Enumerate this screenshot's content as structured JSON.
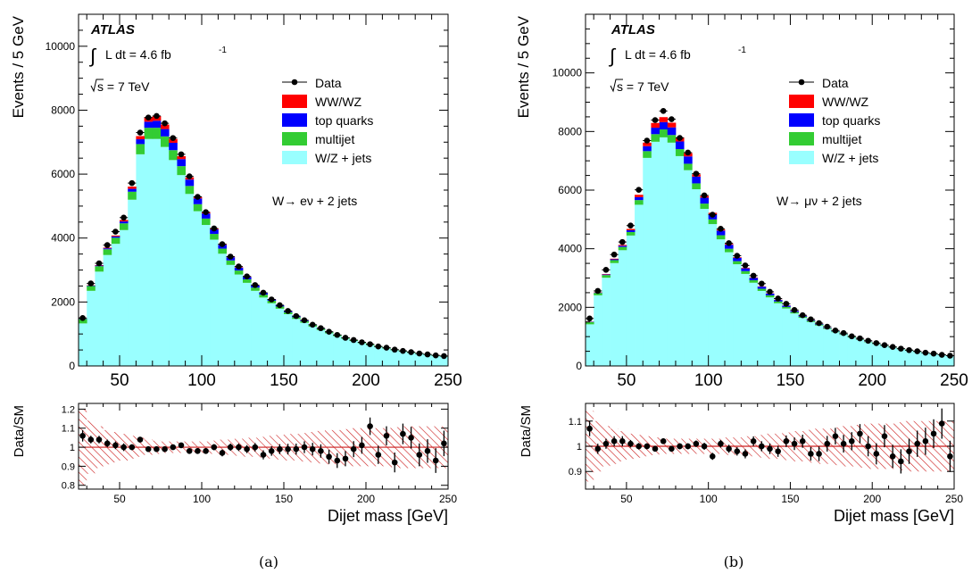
{
  "colors": {
    "wz_jets": "#99ffff",
    "multijet": "#33cc33",
    "top_quarks": "#0000ff",
    "ww_wz": "#ff0000",
    "data": "#000000",
    "band": "#cc1f1f"
  },
  "chart_data": [
    {
      "panel_caption": "(a)",
      "type": "bar",
      "subtype": "stacked-histogram-with-ratio",
      "title": "ATLAS",
      "annotations": [
        "L dt = 4.6 fb",
        "-1",
        "s = 7 TeV",
        "W→ eν + 2 jets"
      ],
      "ylabel": "Events / 5 GeV",
      "xlim": [
        25,
        250
      ],
      "ylim": [
        0,
        11000
      ],
      "yticks": [
        0,
        2000,
        4000,
        6000,
        8000,
        10000
      ],
      "xticks": [
        50,
        100,
        150,
        200,
        250
      ],
      "bin_width": 5,
      "x": [
        27.5,
        32.5,
        37.5,
        42.5,
        47.5,
        52.5,
        57.5,
        62.5,
        67.5,
        72.5,
        77.5,
        82.5,
        87.5,
        92.5,
        97.5,
        102.5,
        107.5,
        112.5,
        117.5,
        122.5,
        127.5,
        132.5,
        137.5,
        142.5,
        147.5,
        152.5,
        157.5,
        162.5,
        167.5,
        172.5,
        177.5,
        182.5,
        187.5,
        192.5,
        197.5,
        202.5,
        207.5,
        212.5,
        217.5,
        222.5,
        227.5,
        232.5,
        237.5,
        242.5,
        247.5
      ],
      "legend": [
        "Data",
        "WW/WZ",
        "top quarks",
        "multijet",
        "W/Z + jets"
      ],
      "legend_position": "top-right",
      "series": [
        {
          "name": "W/Z + jets",
          "values": [
            1330,
            2350,
            2950,
            3470,
            3820,
            4250,
            5200,
            6620,
            7100,
            7100,
            6850,
            6440,
            5970,
            5380,
            4840,
            4410,
            3950,
            3510,
            3160,
            2860,
            2600,
            2350,
            2140,
            1960,
            1790,
            1620,
            1470,
            1350,
            1230,
            1120,
            1020,
            930,
            850,
            780,
            710,
            650,
            590,
            540,
            490,
            450,
            410,
            375,
            345,
            315,
            290
          ]
        },
        {
          "name": "multijet",
          "values": [
            140,
            150,
            170,
            180,
            190,
            210,
            250,
            320,
            350,
            350,
            330,
            310,
            280,
            250,
            220,
            200,
            180,
            160,
            140,
            125,
            110,
            100,
            90,
            80,
            70,
            62,
            55,
            50,
            45,
            40,
            36,
            32,
            29,
            26,
            23,
            21,
            19,
            17,
            15,
            14,
            13,
            12,
            11,
            10,
            9
          ]
        },
        {
          "name": "top quarks",
          "values": [
            10,
            15,
            20,
            30,
            40,
            60,
            90,
            150,
            190,
            220,
            230,
            230,
            220,
            200,
            180,
            160,
            140,
            120,
            100,
            85,
            75,
            65,
            55,
            45,
            38,
            32,
            26,
            22,
            18,
            15,
            12,
            10,
            8,
            6,
            5,
            4,
            3,
            3,
            2,
            2,
            2,
            2,
            1,
            1,
            1
          ]
        },
        {
          "name": "WW/WZ",
          "values": [
            5,
            10,
            15,
            20,
            30,
            45,
            70,
            100,
            140,
            150,
            140,
            120,
            90,
            70,
            50,
            40,
            30,
            25,
            20,
            16,
            13,
            10,
            8,
            7,
            6,
            5,
            4,
            4,
            3,
            3,
            3,
            2,
            2,
            2,
            2,
            2,
            1,
            1,
            1,
            1,
            1,
            1,
            1,
            1,
            1
          ]
        },
        {
          "name": "Data",
          "values": [
            1500,
            2580,
            3210,
            3780,
            4200,
            4640,
            5720,
            7300,
            7770,
            7820,
            7590,
            7130,
            6620,
            5930,
            5290,
            4810,
            4300,
            3810,
            3420,
            3110,
            2800,
            2530,
            2290,
            2080,
            1900,
            1720,
            1560,
            1430,
            1290,
            1180,
            1070,
            970,
            880,
            810,
            740,
            680,
            610,
            570,
            510,
            470,
            430,
            390,
            360,
            330,
            310
          ]
        }
      ],
      "ratio": {
        "ylabel": "Data/SM",
        "xlabel": "Dijet mass [GeV]",
        "ylim": [
          0.78,
          1.23
        ],
        "yticks": [
          0.8,
          0.9,
          1.0,
          1.1,
          1.2
        ],
        "xticks": [
          50,
          100,
          150,
          200,
          250
        ],
        "values": [
          1.06,
          1.04,
          1.04,
          1.02,
          1.01,
          1.0,
          1.0,
          1.04,
          0.99,
          0.99,
          0.99,
          1.0,
          1.01,
          0.98,
          0.98,
          0.98,
          1.0,
          0.97,
          1.0,
          1.0,
          0.99,
          1.0,
          0.96,
          0.98,
          0.99,
          0.99,
          0.99,
          1.0,
          0.99,
          0.98,
          0.95,
          0.93,
          0.94,
          0.99,
          1.01,
          1.11,
          0.96,
          1.06,
          0.92,
          1.07,
          1.05,
          0.96,
          0.98,
          0.93,
          1.02
        ],
        "errors": [
          0.03,
          0.02,
          0.02,
          0.02,
          0.02,
          0.02,
          0.015,
          0.012,
          0.012,
          0.012,
          0.012,
          0.012,
          0.013,
          0.014,
          0.015,
          0.015,
          0.016,
          0.018,
          0.019,
          0.02,
          0.021,
          0.022,
          0.024,
          0.025,
          0.026,
          0.028,
          0.029,
          0.031,
          0.033,
          0.035,
          0.037,
          0.039,
          0.04,
          0.042,
          0.044,
          0.046,
          0.048,
          0.05,
          0.052,
          0.054,
          0.057,
          0.06,
          0.062,
          0.065,
          0.067
        ],
        "band": [
          0.2,
          0.14,
          0.11,
          0.09,
          0.08,
          0.07,
          0.06,
          0.05,
          0.04,
          0.035,
          0.03,
          0.03,
          0.03,
          0.03,
          0.03,
          0.03,
          0.035,
          0.04,
          0.04,
          0.045,
          0.05,
          0.05,
          0.055,
          0.06,
          0.065,
          0.07,
          0.07,
          0.075,
          0.08,
          0.085,
          0.09,
          0.09,
          0.095,
          0.1,
          0.1,
          0.1,
          0.1,
          0.1,
          0.105,
          0.11,
          0.11,
          0.11,
          0.11,
          0.11,
          0.11
        ]
      }
    },
    {
      "panel_caption": "(b)",
      "type": "bar",
      "subtype": "stacked-histogram-with-ratio",
      "title": "ATLAS",
      "annotations": [
        "L dt = 4.6 fb",
        "-1",
        "s = 7 TeV",
        "W→ μν + 2 jets"
      ],
      "ylabel": "Events / 5 GeV",
      "xlim": [
        25,
        250
      ],
      "ylim": [
        0,
        12000
      ],
      "yticks": [
        0,
        2000,
        4000,
        6000,
        8000,
        10000
      ],
      "xticks": [
        50,
        100,
        150,
        200,
        250
      ],
      "bin_width": 5,
      "x": [
        27.5,
        32.5,
        37.5,
        42.5,
        47.5,
        52.5,
        57.5,
        62.5,
        67.5,
        72.5,
        77.5,
        82.5,
        87.5,
        92.5,
        97.5,
        102.5,
        107.5,
        112.5,
        117.5,
        122.5,
        127.5,
        132.5,
        137.5,
        142.5,
        147.5,
        152.5,
        157.5,
        162.5,
        167.5,
        172.5,
        177.5,
        182.5,
        187.5,
        192.5,
        197.5,
        202.5,
        207.5,
        212.5,
        217.5,
        222.5,
        227.5,
        232.5,
        237.5,
        242.5,
        247.5
      ],
      "legend": [
        "Data",
        "WW/WZ",
        "top quarks",
        "multijet",
        "W/Z + jets"
      ],
      "legend_position": "top-right",
      "series": [
        {
          "name": "W/Z + jets",
          "values": [
            1420,
            2410,
            3010,
            3510,
            3950,
            4450,
            5500,
            7100,
            7650,
            7800,
            7620,
            7160,
            6680,
            6030,
            5360,
            4840,
            4320,
            3880,
            3470,
            3140,
            2840,
            2560,
            2340,
            2140,
            1960,
            1790,
            1640,
            1500,
            1380,
            1260,
            1150,
            1060,
            970,
            890,
            810,
            740,
            680,
            620,
            570,
            520,
            480,
            440,
            400,
            370,
            340
          ]
        },
        {
          "name": "multijet",
          "values": [
            80,
            80,
            90,
            100,
            110,
            120,
            160,
            230,
            260,
            270,
            260,
            240,
            220,
            200,
            180,
            160,
            140,
            120,
            105,
            95,
            85,
            75,
            68,
            60,
            54,
            48,
            43,
            38,
            34,
            30,
            27,
            24,
            21,
            19,
            17,
            15,
            14,
            13,
            12,
            11,
            10,
            9,
            8,
            7,
            6
          ]
        },
        {
          "name": "top quarks",
          "values": [
            10,
            15,
            20,
            30,
            40,
            60,
            100,
            170,
            220,
            250,
            260,
            260,
            250,
            230,
            200,
            180,
            160,
            135,
            115,
            95,
            80,
            70,
            60,
            50,
            42,
            35,
            29,
            24,
            20,
            16,
            13,
            11,
            9,
            7,
            6,
            5,
            4,
            3,
            3,
            2,
            2,
            2,
            2,
            1,
            1
          ]
        },
        {
          "name": "WW/WZ",
          "values": [
            5,
            10,
            15,
            20,
            30,
            45,
            80,
            120,
            160,
            170,
            160,
            140,
            110,
            80,
            60,
            45,
            35,
            28,
            22,
            18,
            14,
            11,
            9,
            8,
            7,
            6,
            5,
            4,
            4,
            3,
            3,
            3,
            2,
            2,
            2,
            2,
            1,
            1,
            1,
            1,
            1,
            1,
            1,
            1,
            1
          ]
        },
        {
          "name": "Data",
          "values": [
            1620,
            2560,
            3280,
            3800,
            4230,
            4790,
            6010,
            7690,
            8390,
            8700,
            8420,
            7780,
            7280,
            6560,
            5820,
            5160,
            4680,
            4190,
            3760,
            3430,
            3080,
            2810,
            2530,
            2300,
            2120,
            1910,
            1730,
            1590,
            1460,
            1340,
            1210,
            1120,
            1010,
            940,
            860,
            780,
            710,
            650,
            590,
            540,
            500,
            450,
            420,
            380,
            350
          ]
        }
      ],
      "ratio": {
        "ylabel": "Data/SM",
        "xlabel": "Dijet mass [GeV]",
        "ylim": [
          0.83,
          1.17
        ],
        "yticks": [
          0.9,
          1.0,
          1.1
        ],
        "xticks": [
          50,
          100,
          150,
          200,
          250
        ],
        "values": [
          1.07,
          0.99,
          1.01,
          1.02,
          1.02,
          1.01,
          1.0,
          1.0,
          0.99,
          1.02,
          0.99,
          1.0,
          1.0,
          1.01,
          1.0,
          0.96,
          1.01,
          0.99,
          0.98,
          0.97,
          1.02,
          1.0,
          0.99,
          0.98,
          1.02,
          1.01,
          1.02,
          0.97,
          0.97,
          1.01,
          1.04,
          1.01,
          1.02,
          1.05,
          1.0,
          0.97,
          1.04,
          0.96,
          0.94,
          0.98,
          1.01,
          1.02,
          1.05,
          1.09,
          0.96
        ],
        "errors": [
          0.03,
          0.02,
          0.02,
          0.02,
          0.02,
          0.015,
          0.013,
          0.012,
          0.011,
          0.011,
          0.011,
          0.012,
          0.012,
          0.013,
          0.014,
          0.014,
          0.015,
          0.016,
          0.017,
          0.018,
          0.019,
          0.02,
          0.021,
          0.022,
          0.023,
          0.025,
          0.026,
          0.027,
          0.029,
          0.031,
          0.033,
          0.035,
          0.036,
          0.038,
          0.04,
          0.042,
          0.044,
          0.046,
          0.048,
          0.05,
          0.052,
          0.054,
          0.057,
          0.06,
          0.062
        ],
        "band": [
          0.14,
          0.1,
          0.08,
          0.07,
          0.06,
          0.05,
          0.045,
          0.04,
          0.035,
          0.03,
          0.03,
          0.03,
          0.03,
          0.03,
          0.03,
          0.03,
          0.03,
          0.035,
          0.035,
          0.04,
          0.04,
          0.045,
          0.05,
          0.05,
          0.055,
          0.06,
          0.06,
          0.065,
          0.07,
          0.07,
          0.075,
          0.08,
          0.08,
          0.085,
          0.09,
          0.09,
          0.09,
          0.09,
          0.095,
          0.1,
          0.1,
          0.1,
          0.1,
          0.1,
          0.1
        ]
      }
    }
  ]
}
